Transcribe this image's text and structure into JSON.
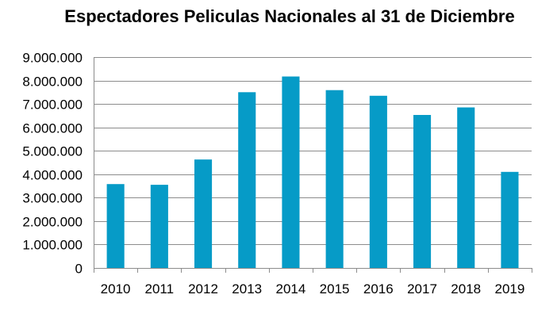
{
  "chart_data": {
    "type": "bar",
    "title": "Espectadores Peliculas Nacionales al 31 de Diciembre",
    "xlabel": "",
    "ylabel": "",
    "categories": [
      "2010",
      "2011",
      "2012",
      "2013",
      "2014",
      "2015",
      "2016",
      "2017",
      "2018",
      "2019"
    ],
    "values": [
      3580000,
      3550000,
      4630000,
      7500000,
      8170000,
      7590000,
      7350000,
      6530000,
      6850000,
      4100000
    ],
    "ylim": [
      0,
      9000000
    ],
    "yticks": [
      0,
      1000000,
      2000000,
      3000000,
      4000000,
      5000000,
      6000000,
      7000000,
      8000000,
      9000000
    ],
    "ytick_labels": [
      "0",
      "1.000.000",
      "2.000.000",
      "3.000.000",
      "4.000.000",
      "5.000.000",
      "6.000.000",
      "7.000.000",
      "8.000.000",
      "9.000.000"
    ],
    "bar_color": "#069BC7",
    "grid": true,
    "legend": "none"
  }
}
